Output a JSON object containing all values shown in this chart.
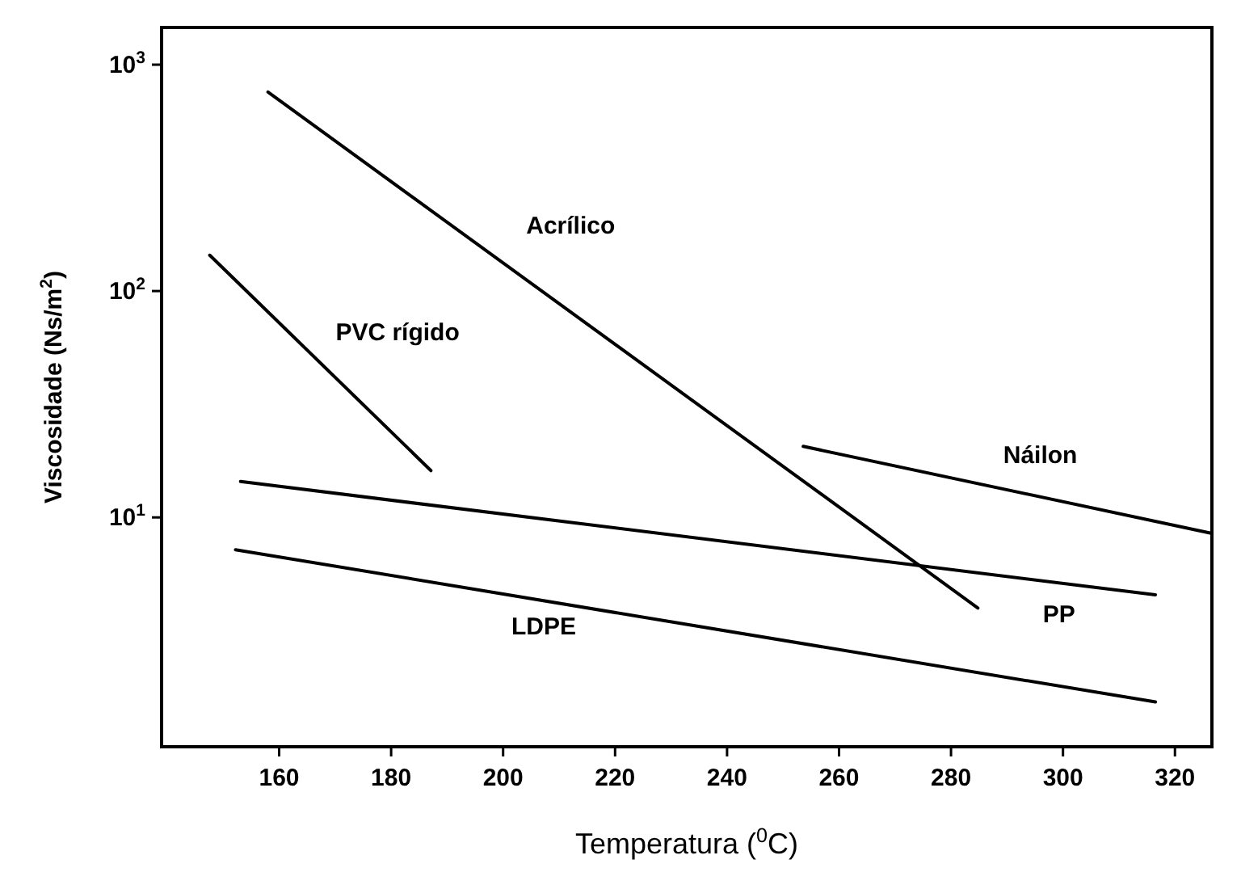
{
  "chart_data": {
    "type": "line",
    "xlabel": "Temperatura ($^{0}$C)",
    "ylabel": "Viscosidade (Ns/m$^{2}$)",
    "log": "y",
    "xlim": [
      139,
      326.6
    ],
    "ylim": [
      0.97,
      1460
    ],
    "xticks": [
      160,
      180,
      200,
      220,
      240,
      260,
      280,
      300,
      320
    ],
    "yticks": [
      {
        "value": 10,
        "label": "10$^{1}$"
      },
      {
        "value": 100,
        "label": "10$^{2}$"
      },
      {
        "value": 1000,
        "label": "10$^{3}$"
      }
    ],
    "marker": "none",
    "line_style": "solid",
    "series": [
      {
        "name": "Acrílico",
        "color": "#000000",
        "x": [
          158,
          284.8
        ],
        "values": [
          757,
          3.98
        ]
      },
      {
        "name": "PVC rígido",
        "color": "#000000",
        "x": [
          147.6,
          187.1
        ],
        "values": [
          144,
          16.1
        ]
      },
      {
        "name": "Náilon",
        "color": "#000000",
        "x": [
          253.6,
          326.6
        ],
        "values": [
          20.6,
          8.5
        ]
      },
      {
        "name": "PP",
        "color": "#000000",
        "x": [
          153.1,
          316.5
        ],
        "values": [
          14.4,
          4.55
        ]
      },
      {
        "name": "LDPE",
        "color": "#000000",
        "x": [
          152.2,
          316.5
        ],
        "values": [
          7.2,
          1.53
        ]
      }
    ]
  }
}
